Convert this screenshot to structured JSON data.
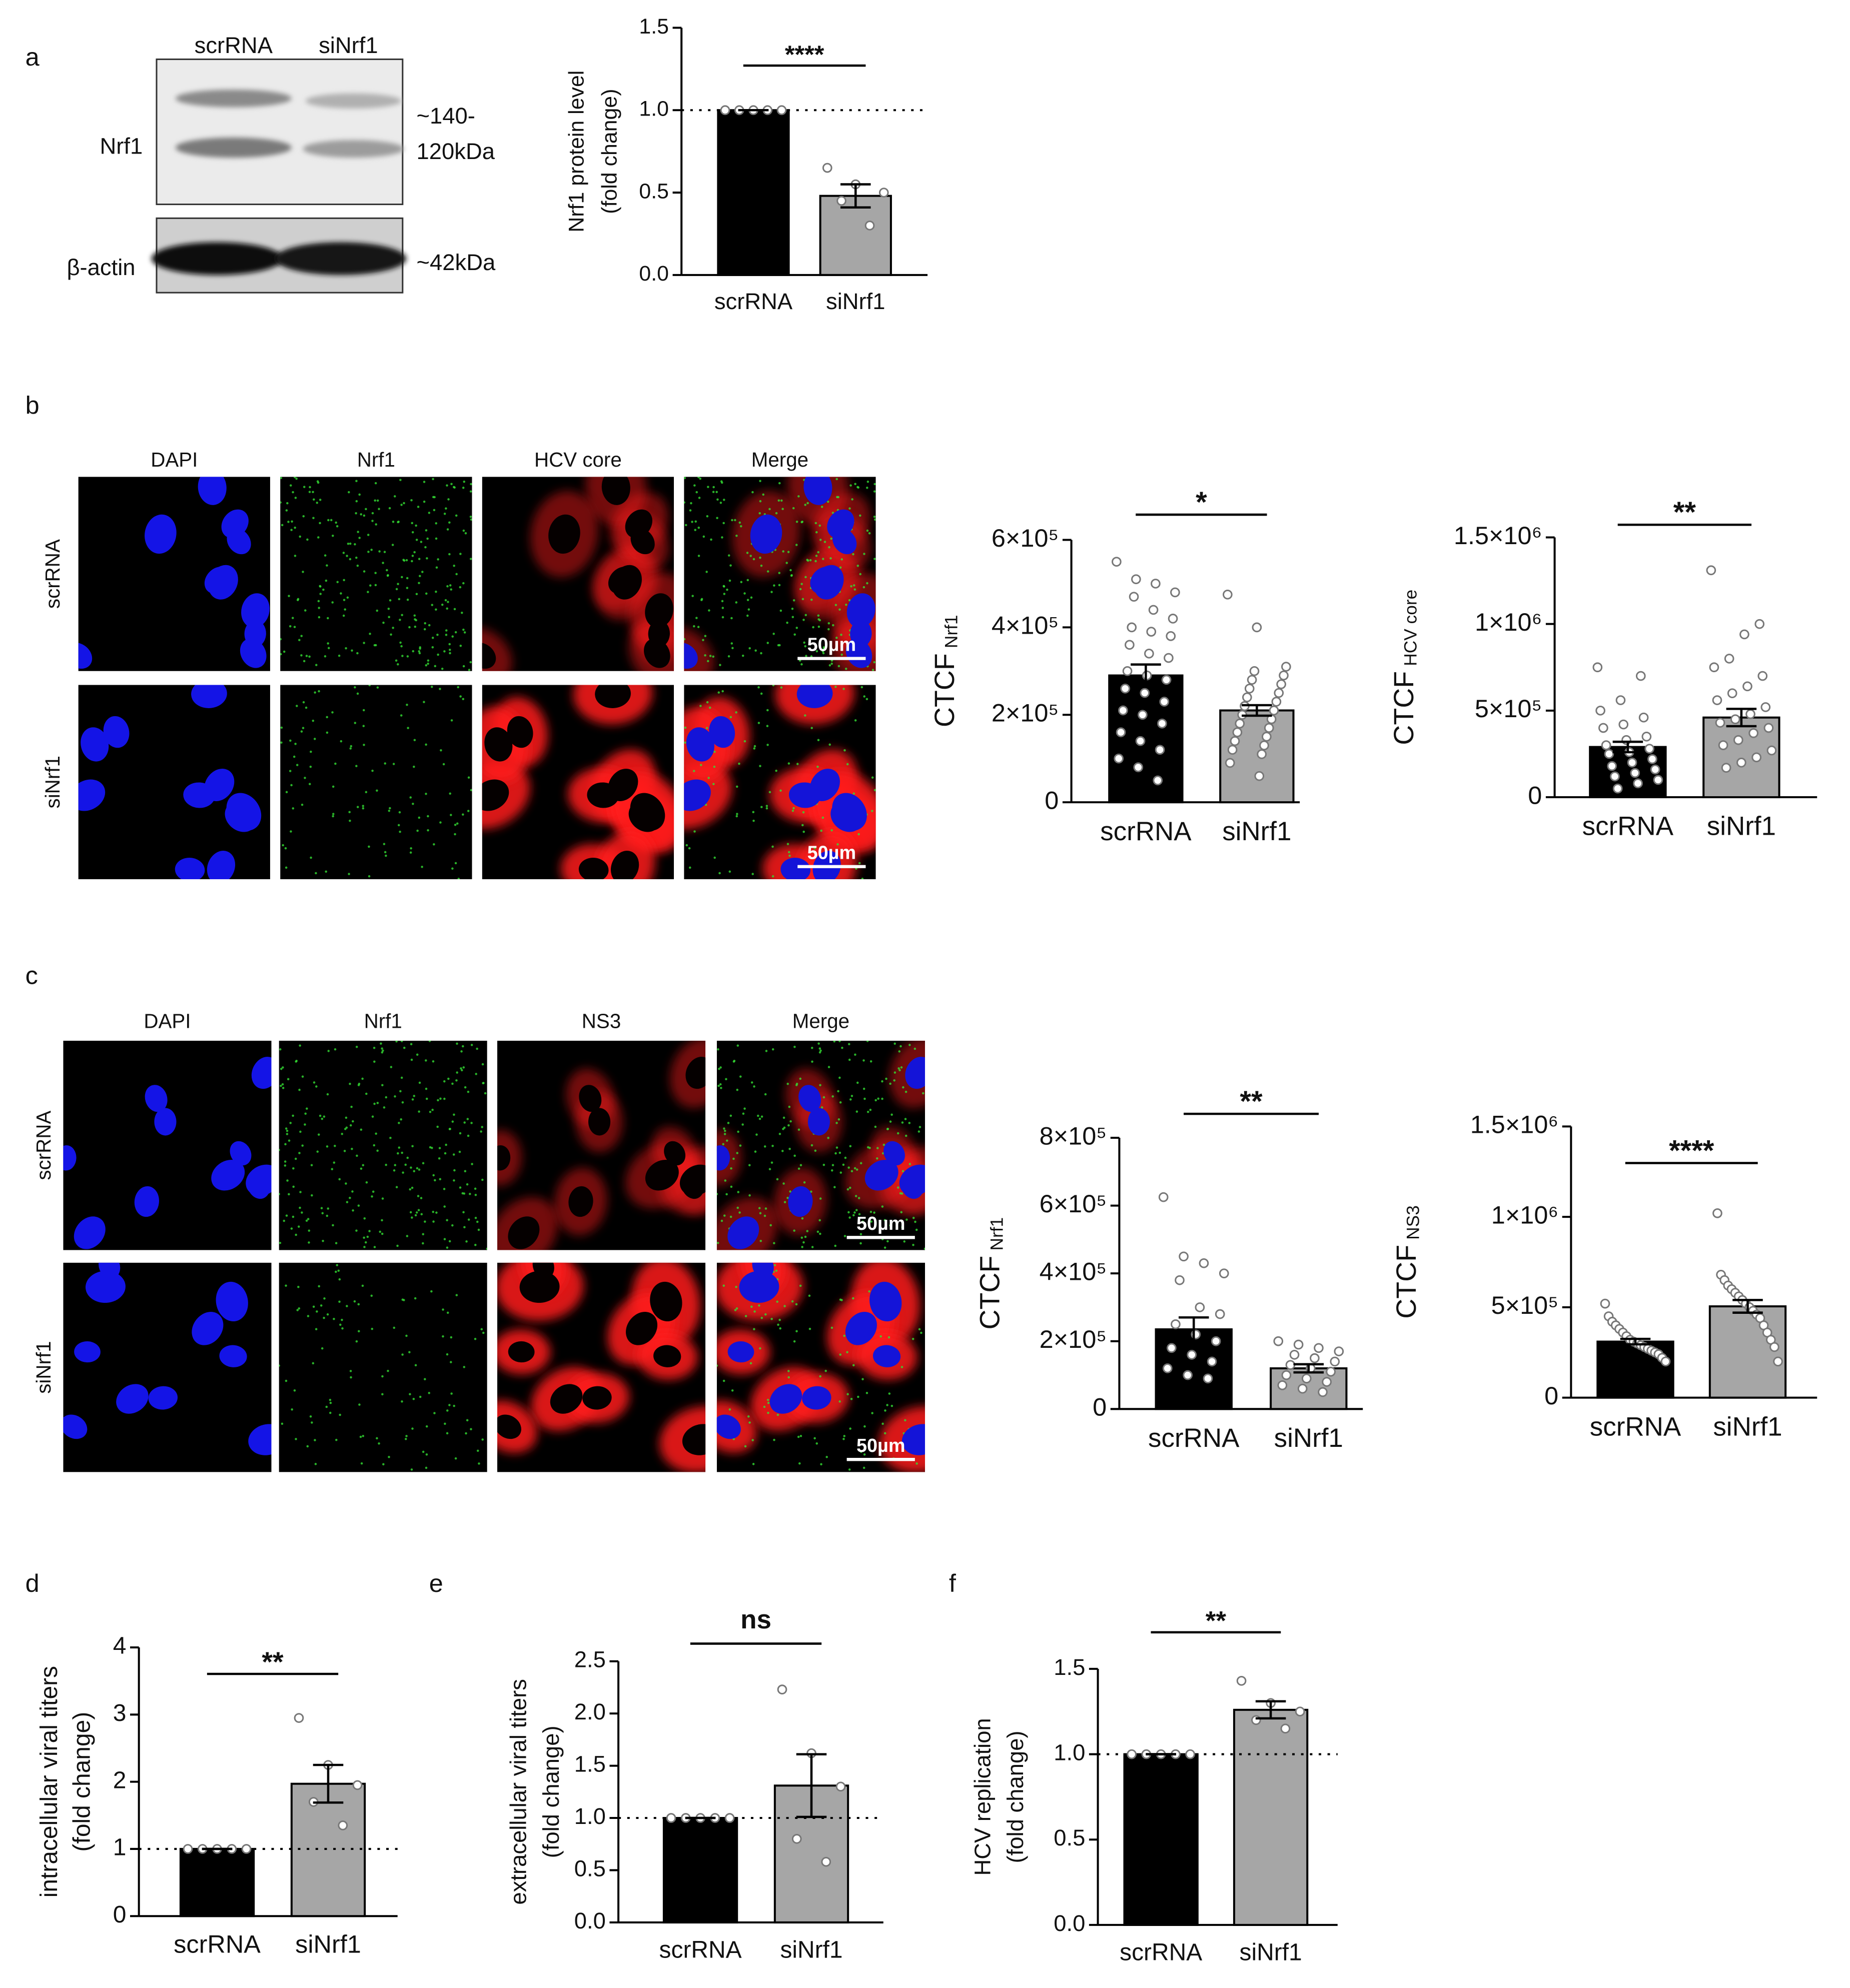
{
  "panel_labels": [
    "a",
    "b",
    "c",
    "d",
    "e",
    "f"
  ],
  "blot": {
    "lanes": [
      "scrRNA",
      "siNrf1"
    ],
    "rows": [
      "Nrf1",
      "β-actin"
    ],
    "sizes": [
      "~140-",
      "120kDa",
      "~42kDa"
    ]
  },
  "micrographs": [
    {
      "columns": [
        "DAPI",
        "Nrf1",
        "HCV core",
        "Merge"
      ],
      "rows": [
        "scrRNA",
        "siNrf1"
      ],
      "scale_bar": "50µm"
    },
    {
      "columns": [
        "DAPI",
        "Nrf1",
        "NS3",
        "Merge"
      ],
      "rows": [
        "scrRNA",
        "siNrf1"
      ],
      "scale_bar": "50µm"
    }
  ],
  "chart_data": [
    {
      "type": "bar",
      "ylabel": [
        "Nrf1 protein level",
        "(fold change)"
      ],
      "categories": [
        "scrRNA",
        "siNrf1"
      ],
      "values": [
        1.0,
        0.48
      ],
      "errors": [
        0,
        0.07
      ],
      "colors": [
        "#000000",
        "#a6a6a6"
      ],
      "points": [
        [
          1.0,
          1.0,
          1.0,
          1.0,
          1.0
        ],
        [
          0.65,
          0.55,
          0.5,
          0.45,
          0.3
        ]
      ],
      "significance": "****",
      "reference_line": 1,
      "ylim": [
        0,
        1.5
      ],
      "yticks": [
        {
          "value": 0,
          "label": "0.0"
        },
        0.5,
        {
          "value": 1,
          "label": "1.0"
        },
        1.5
      ]
    },
    {
      "type": "bar",
      "ylabel": "CTCF",
      "ylabel_sub": "Nrf1",
      "categories": [
        "scrRNA",
        "siNrf1"
      ],
      "values": [
        290000,
        210000
      ],
      "errors": [
        25000,
        12000
      ],
      "colors": [
        "#000000",
        "#a6a6a6"
      ],
      "points": [
        [
          550000,
          510000,
          500000,
          480000,
          470000,
          440000,
          420000,
          400000,
          390000,
          380000,
          360000,
          340000,
          330000,
          300000,
          290000,
          280000,
          260000,
          250000,
          230000,
          210000,
          200000,
          180000,
          160000,
          140000,
          120000,
          100000,
          80000,
          50000
        ],
        [
          475000,
          400000,
          310000,
          300000,
          290000,
          280000,
          270000,
          260000,
          250000,
          240000,
          230000,
          220000,
          210000,
          200000,
          190000,
          180000,
          170000,
          160000,
          150000,
          140000,
          130000,
          120000,
          110000,
          90000,
          60000
        ]
      ],
      "significance": "*",
      "ylim": [
        0,
        600000
      ],
      "yticks": [
        0,
        {
          "value": 200000,
          "label": "2×10⁵"
        },
        {
          "value": 400000,
          "label": "4×10⁵"
        },
        {
          "value": 600000,
          "label": "6×10⁵"
        }
      ]
    },
    {
      "type": "bar",
      "ylabel": "CTCF",
      "ylabel_sub": "HCV core",
      "categories": [
        "scrRNA",
        "siNrf1"
      ],
      "values": [
        290000,
        460000
      ],
      "errors": [
        30000,
        50000
      ],
      "colors": [
        "#000000",
        "#a6a6a6"
      ],
      "points": [
        [
          750000,
          700000,
          560000,
          500000,
          460000,
          420000,
          400000,
          350000,
          330000,
          300000,
          280000,
          260000,
          250000,
          220000,
          200000,
          180000,
          160000,
          140000,
          120000,
          100000,
          80000,
          50000
        ],
        [
          1310000,
          1000000,
          940000,
          800000,
          750000,
          700000,
          640000,
          600000,
          560000,
          520000,
          480000,
          450000,
          430000,
          400000,
          370000,
          330000,
          300000,
          270000,
          230000,
          200000,
          170000
        ]
      ],
      "significance": "**",
      "ylim": [
        0,
        1500000
      ],
      "yticks": [
        0,
        {
          "value": 500000,
          "label": "5×10⁵"
        },
        {
          "value": 1000000,
          "label": "1×10⁶"
        },
        {
          "value": 1500000,
          "label": "1.5×10⁶"
        }
      ]
    },
    {
      "type": "bar",
      "ylabel": "CTCF",
      "ylabel_sub": "Nrf1",
      "categories": [
        "scrRNA",
        "siNrf1"
      ],
      "values": [
        235000,
        120000
      ],
      "errors": [
        35000,
        12000
      ],
      "colors": [
        "#000000",
        "#a6a6a6"
      ],
      "points": [
        [
          625000,
          450000,
          430000,
          400000,
          380000,
          300000,
          280000,
          250000,
          220000,
          200000,
          180000,
          160000,
          140000,
          120000,
          100000,
          90000
        ],
        [
          200000,
          190000,
          180000,
          170000,
          160000,
          150000,
          140000,
          130000,
          120000,
          110000,
          100000,
          90000,
          80000,
          70000,
          60000,
          50000
        ]
      ],
      "significance": "**",
      "ylim": [
        0,
        800000
      ],
      "yticks": [
        0,
        {
          "value": 200000,
          "label": "2×10⁵"
        },
        {
          "value": 400000,
          "label": "4×10⁵"
        },
        {
          "value": 600000,
          "label": "6×10⁵"
        },
        {
          "value": 800000,
          "label": "8×10⁵"
        }
      ]
    },
    {
      "type": "bar",
      "ylabel": "CTCF",
      "ylabel_sub": "NS3",
      "categories": [
        "scrRNA",
        "siNrf1"
      ],
      "values": [
        310000,
        505000
      ],
      "errors": [
        15000,
        35000
      ],
      "colors": [
        "#000000",
        "#a6a6a6"
      ],
      "points": [
        [
          520000,
          450000,
          420000,
          400000,
          380000,
          360000,
          340000,
          320000,
          310000,
          300000,
          290000,
          280000,
          270000,
          260000,
          250000,
          240000,
          220000,
          200000
        ],
        [
          1020000,
          680000,
          650000,
          620000,
          600000,
          580000,
          560000,
          540000,
          520000,
          500000,
          480000,
          460000,
          440000,
          400000,
          360000,
          320000,
          280000,
          200000
        ]
      ],
      "significance": "****",
      "ylim": [
        0,
        1500000
      ],
      "yticks": [
        0,
        {
          "value": 500000,
          "label": "5×10⁵"
        },
        {
          "value": 1000000,
          "label": "1×10⁶"
        },
        {
          "value": 1500000,
          "label": "1.5×10⁶"
        }
      ]
    },
    {
      "type": "bar",
      "ylabel": [
        "intracellular viral titers",
        "(fold change)"
      ],
      "categories": [
        "scrRNA",
        "siNrf1"
      ],
      "values": [
        1.0,
        1.97
      ],
      "errors": [
        0,
        0.28
      ],
      "colors": [
        "#000000",
        "#a6a6a6"
      ],
      "points": [
        [
          1.0,
          1.0,
          1.0,
          1.0,
          1.0
        ],
        [
          2.95,
          2.25,
          1.95,
          1.7,
          1.35
        ]
      ],
      "significance": "**",
      "reference_line": 1,
      "ylim": [
        0,
        4
      ],
      "yticks": [
        0,
        1,
        2,
        3,
        4
      ]
    },
    {
      "type": "bar",
      "ylabel": [
        "extracellular viral titers",
        "(fold change)"
      ],
      "categories": [
        "scrRNA",
        "siNrf1"
      ],
      "values": [
        1.0,
        1.31
      ],
      "errors": [
        0,
        0.3
      ],
      "colors": [
        "#000000",
        "#a6a6a6"
      ],
      "points": [
        [
          1.0,
          1.0,
          1.0,
          1.0,
          1.0
        ],
        [
          2.23,
          1.62,
          1.3,
          0.8,
          0.58
        ]
      ],
      "significance": "ns",
      "reference_line": 1,
      "ylim": [
        0,
        2.5
      ],
      "yticks": [
        {
          "value": 0,
          "label": "0.0"
        },
        0.5,
        {
          "value": 1,
          "label": "1.0"
        },
        1.5,
        {
          "value": 2,
          "label": "2.0"
        },
        2.5
      ]
    },
    {
      "type": "bar",
      "ylabel": [
        "HCV replication",
        "(fold change)"
      ],
      "categories": [
        "scrRNA",
        "siNrf1"
      ],
      "values": [
        1.0,
        1.26
      ],
      "errors": [
        0,
        0.05
      ],
      "colors": [
        "#000000",
        "#a6a6a6"
      ],
      "points": [
        [
          1.0,
          1.0,
          1.0,
          1.0,
          1.0
        ],
        [
          1.43,
          1.3,
          1.25,
          1.2,
          1.15
        ]
      ],
      "significance": "**",
      "reference_line": 1,
      "ylim": [
        0,
        1.5
      ],
      "yticks": [
        {
          "value": 0,
          "label": "0.0"
        },
        0.5,
        {
          "value": 1,
          "label": "1.0"
        },
        1.5
      ]
    }
  ]
}
